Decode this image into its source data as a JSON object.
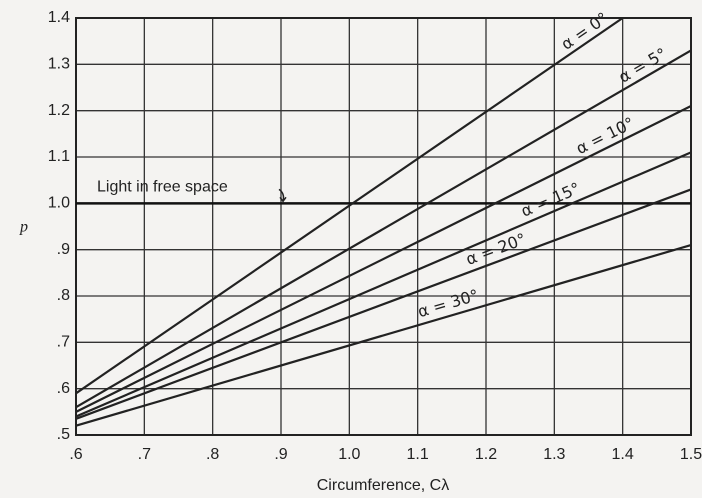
{
  "chart_data": {
    "type": "line",
    "y_label": "p",
    "x_label": "Circumference, Cλ",
    "xlim": [
      0.6,
      1.5
    ],
    "ylim": [
      0.5,
      1.4
    ],
    "xticks": [
      {
        "value": 0.6,
        "label": ".6"
      },
      {
        "value": 0.7,
        "label": ".7"
      },
      {
        "value": 0.8,
        "label": ".8"
      },
      {
        "value": 0.9,
        "label": ".9"
      },
      {
        "value": 1.0,
        "label": "1.0"
      },
      1.1,
      1.2,
      1.3,
      1.4,
      1.5
    ],
    "yticks": [
      {
        "value": 0.5,
        "label": ".5"
      },
      {
        "value": 0.6,
        "label": ".6"
      },
      {
        "value": 0.7,
        "label": ".7"
      },
      {
        "value": 0.8,
        "label": ".8"
      },
      {
        "value": 0.9,
        "label": ".9"
      },
      {
        "value": 1.0,
        "label": "1.0"
      },
      1.1,
      1.2,
      1.3,
      1.4
    ],
    "grid": true,
    "reference_line": {
      "label": "Light in free space",
      "value": 1.0
    },
    "series": [
      {
        "name": "α = 0°",
        "color": "#222222",
        "x": [
          0.6,
          1.4
        ],
        "values": [
          0.59,
          1.4
        ]
      },
      {
        "name": "α = 5°",
        "color": "#222222",
        "x": [
          0.6,
          1.5
        ],
        "values": [
          0.56,
          1.33
        ]
      },
      {
        "name": "α = 10°",
        "color": "#222222",
        "x": [
          0.6,
          1.5
        ],
        "values": [
          0.55,
          1.21
        ]
      },
      {
        "name": "α = 15°",
        "color": "#222222",
        "x": [
          0.6,
          1.5
        ],
        "values": [
          0.54,
          1.11
        ]
      },
      {
        "name": "α = 20°",
        "color": "#222222",
        "x": [
          0.6,
          1.5
        ],
        "values": [
          0.535,
          1.03
        ]
      },
      {
        "name": "α = 30°",
        "color": "#222222",
        "x": [
          0.6,
          1.5
        ],
        "values": [
          0.52,
          0.91
        ]
      }
    ]
  }
}
